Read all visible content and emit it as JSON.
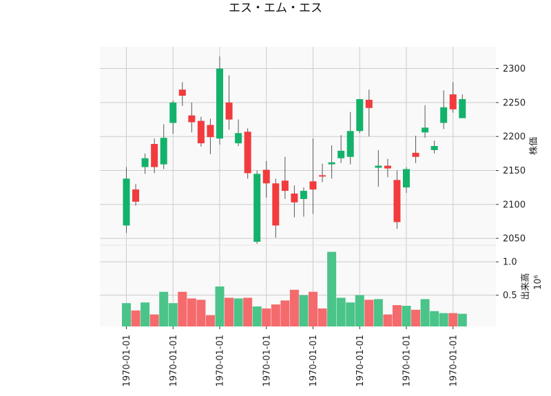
{
  "chart_data": {
    "type": "candlestick",
    "title": "エス・エム・エス",
    "price_axis": {
      "label": "株価",
      "ticks": [
        "2050",
        "2100",
        "2150",
        "2200",
        "2250",
        "2300"
      ],
      "range": [
        2040,
        2332
      ]
    },
    "volume_axis": {
      "label": "出来高",
      "exponent": "10⁶",
      "ticks": [
        "0.5",
        "1.0"
      ],
      "range": [
        0.03,
        1.25
      ]
    },
    "x_tick_labels": [
      "1970-01-01",
      "1970-01-01",
      "1970-01-01",
      "1970-01-01",
      "1970-01-01",
      "1970-01-01",
      "1970-01-01",
      "1970-01-01"
    ],
    "x_tick_indices": [
      0,
      5,
      10,
      15,
      20,
      25,
      30,
      35
    ],
    "colors": {
      "up": "#13b26b",
      "down": "#f23b3d",
      "up_volume": "#4ac489",
      "down_volume": "#f56a6c",
      "wick": "#555555"
    },
    "candles": [
      {
        "o": 2069,
        "h": 2155,
        "l": 2058,
        "c": 2138
      },
      {
        "o": 2122,
        "h": 2130,
        "l": 2098,
        "c": 2104
      },
      {
        "o": 2155,
        "h": 2175,
        "l": 2145,
        "c": 2168
      },
      {
        "o": 2189,
        "h": 2197,
        "l": 2146,
        "c": 2155
      },
      {
        "o": 2159,
        "h": 2218,
        "l": 2152,
        "c": 2198
      },
      {
        "o": 2220,
        "h": 2253,
        "l": 2204,
        "c": 2250
      },
      {
        "o": 2269,
        "h": 2280,
        "l": 2245,
        "c": 2260
      },
      {
        "o": 2231,
        "h": 2250,
        "l": 2206,
        "c": 2221
      },
      {
        "o": 2223,
        "h": 2229,
        "l": 2185,
        "c": 2190
      },
      {
        "o": 2217,
        "h": 2226,
        "l": 2174,
        "c": 2199
      },
      {
        "o": 2197,
        "h": 2318,
        "l": 2188,
        "c": 2300
      },
      {
        "o": 2250,
        "h": 2290,
        "l": 2210,
        "c": 2225
      },
      {
        "o": 2190,
        "h": 2225,
        "l": 2186,
        "c": 2205
      },
      {
        "o": 2207,
        "h": 2212,
        "l": 2138,
        "c": 2146
      },
      {
        "o": 2045,
        "h": 2150,
        "l": 2042,
        "c": 2145
      },
      {
        "o": 2151,
        "h": 2164,
        "l": 2110,
        "c": 2131
      },
      {
        "o": 2131,
        "h": 2138,
        "l": 2051,
        "c": 2069
      },
      {
        "o": 2135,
        "h": 2170,
        "l": 2108,
        "c": 2120
      },
      {
        "o": 2116,
        "h": 2128,
        "l": 2081,
        "c": 2103
      },
      {
        "o": 2108,
        "h": 2125,
        "l": 2082,
        "c": 2120
      },
      {
        "o": 2134,
        "h": 2197,
        "l": 2086,
        "c": 2122
      },
      {
        "o": 2143,
        "h": 2160,
        "l": 2133,
        "c": 2141
      },
      {
        "o": 2159,
        "h": 2187,
        "l": 2138,
        "c": 2162
      },
      {
        "o": 2168,
        "h": 2202,
        "l": 2161,
        "c": 2179
      },
      {
        "o": 2170,
        "h": 2236,
        "l": 2159,
        "c": 2208
      },
      {
        "o": 2208,
        "h": 2255,
        "l": 2205,
        "c": 2255
      },
      {
        "o": 2254,
        "h": 2269,
        "l": 2200,
        "c": 2242
      },
      {
        "o": 2154,
        "h": 2180,
        "l": 2126,
        "c": 2157
      },
      {
        "o": 2157,
        "h": 2167,
        "l": 2140,
        "c": 2153
      },
      {
        "o": 2136,
        "h": 2150,
        "l": 2064,
        "c": 2074
      },
      {
        "o": 2125,
        "h": 2155,
        "l": 2117,
        "c": 2152
      },
      {
        "o": 2176,
        "h": 2201,
        "l": 2161,
        "c": 2170
      },
      {
        "o": 2206,
        "h": 2246,
        "l": 2198,
        "c": 2213
      },
      {
        "o": 2180,
        "h": 2194,
        "l": 2175,
        "c": 2186
      },
      {
        "o": 2220,
        "h": 2268,
        "l": 2211,
        "c": 2243
      },
      {
        "o": 2262,
        "h": 2280,
        "l": 2235,
        "c": 2240
      },
      {
        "o": 2227,
        "h": 2262,
        "l": 2227,
        "c": 2255
      }
    ],
    "volume": [
      0.38,
      0.27,
      0.39,
      0.21,
      0.55,
      0.38,
      0.55,
      0.45,
      0.43,
      0.2,
      0.63,
      0.46,
      0.45,
      0.46,
      0.33,
      0.3,
      0.36,
      0.42,
      0.58,
      0.5,
      0.55,
      0.3,
      1.15,
      0.46,
      0.39,
      0.5,
      0.43,
      0.44,
      0.21,
      0.35,
      0.34,
      0.28,
      0.44,
      0.26,
      0.23,
      0.23,
      0.22
    ]
  }
}
